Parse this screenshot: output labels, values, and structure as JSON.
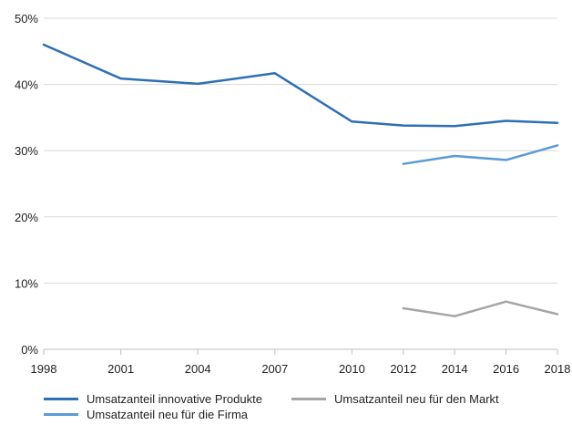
{
  "chart_data": {
    "type": "line",
    "title": "",
    "xlabel": "",
    "ylabel": "",
    "categories": [
      "1998",
      "2001",
      "2004",
      "2007",
      "2010",
      "2012",
      "2014",
      "2016",
      "2018"
    ],
    "x": [
      1998,
      2001,
      2004,
      2007,
      2010,
      2012,
      2014,
      2016,
      2018
    ],
    "ylim": [
      0,
      50
    ],
    "yticks": [
      "0%",
      "10%",
      "20%",
      "30%",
      "40%",
      "50%"
    ],
    "y_tick_values": [
      0,
      10,
      20,
      30,
      40,
      50
    ],
    "grid": "horizontal",
    "legend_position": "bottom",
    "series": [
      {
        "name": "Umsatzanteil innovative Produkte",
        "color": "#2e6fb5",
        "values": [
          46.0,
          40.9,
          40.1,
          41.7,
          34.4,
          33.8,
          33.7,
          34.5,
          34.2
        ]
      },
      {
        "name": "Umsatzanteil neu für die Firma",
        "color": "#5b9bd5",
        "values": [
          null,
          null,
          null,
          null,
          null,
          28.0,
          29.2,
          28.6,
          30.8
        ]
      },
      {
        "name": "Umsatzanteil neu für den Markt",
        "color": "#a6a6a6",
        "values": [
          null,
          null,
          null,
          null,
          null,
          6.2,
          5.0,
          7.2,
          5.3
        ]
      }
    ]
  }
}
